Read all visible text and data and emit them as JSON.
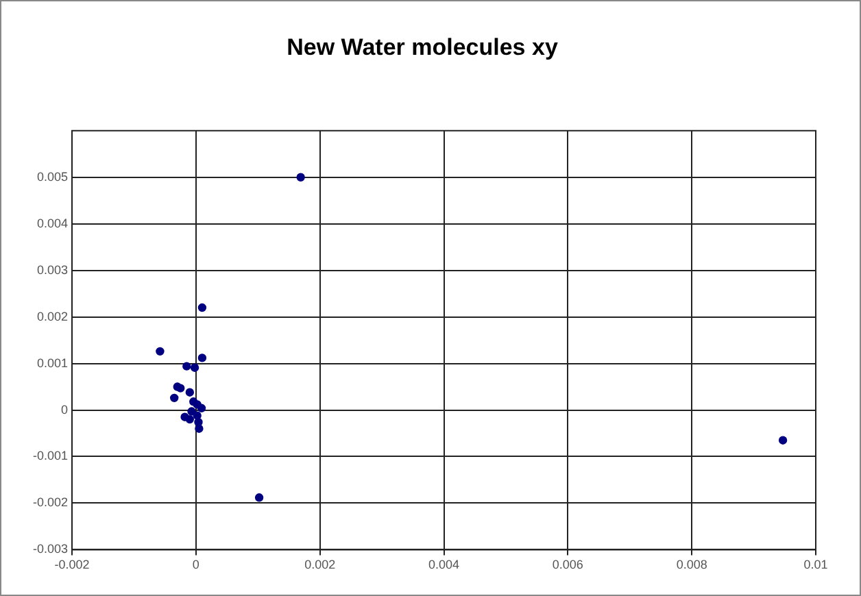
{
  "chart_data": {
    "type": "scatter",
    "title": "New Water molecules xy",
    "x": [
      0.00169,
      0.0001,
      -0.00058,
      0.0001,
      -0.00015,
      -2e-05,
      -0.0003,
      -0.00025,
      -0.00035,
      -0.0001,
      -4e-05,
      2e-05,
      9e-05,
      -7e-05,
      2e-05,
      -0.00018,
      -0.0001,
      4e-05,
      5e-05,
      0.00102,
      0.00947
    ],
    "values": [
      0.005,
      0.0022,
      0.00126,
      0.00112,
      0.00094,
      0.00091,
      0.0005,
      0.00047,
      0.00026,
      0.00038,
      0.00018,
      0.00012,
      4e-05,
      -3e-05,
      -0.00012,
      -0.00015,
      -0.0002,
      -0.00026,
      -0.0004,
      -0.00188,
      -0.00065
    ],
    "color": "#000080",
    "marker": "circle",
    "grid": true,
    "legend": false,
    "xlim": [
      -0.002,
      0.01
    ],
    "xticks": [
      -0.002,
      0,
      0.002,
      0.004,
      0.006,
      0.008,
      0.01
    ],
    "ylim": [
      -0.003,
      0.006
    ],
    "yticks": [
      -0.003,
      -0.002,
      -0.001,
      0,
      0.001,
      0.002,
      0.003,
      0.004,
      0.005
    ]
  }
}
